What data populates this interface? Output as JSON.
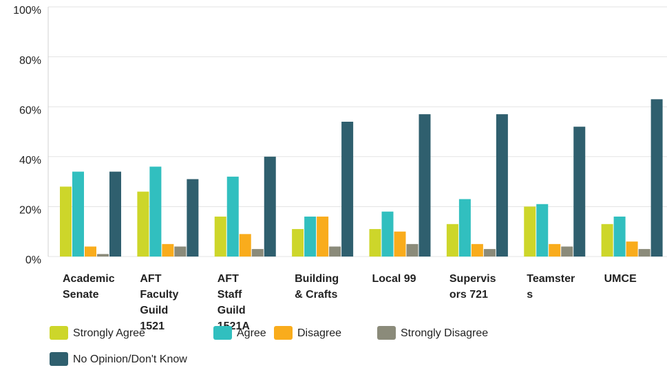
{
  "chart_data": {
    "type": "bar",
    "categories": [
      "Academic Senate",
      "AFT Faculty Guild 1521",
      "AFT Staff Guild 1521A",
      "Building & Crafts",
      "Local 99",
      "Supervisors 721",
      "Teamsters",
      "UMCE"
    ],
    "series": [
      {
        "name": "Strongly Agree",
        "color": "#cdd62a",
        "values": [
          28,
          26,
          16,
          11,
          11,
          13,
          20,
          13
        ]
      },
      {
        "name": "Agree",
        "color": "#31bfbf",
        "values": [
          34,
          36,
          32,
          16,
          18,
          23,
          21,
          16
        ]
      },
      {
        "name": "Disagree",
        "color": "#f9ac1c",
        "values": [
          4,
          5,
          9,
          16,
          10,
          5,
          5,
          6
        ]
      },
      {
        "name": "Strongly Disagree",
        "color": "#8b8b7a",
        "values": [
          1,
          4,
          3,
          4,
          5,
          3,
          4,
          3
        ]
      },
      {
        "name": "No Opinion/Don't Know",
        "color": "#2f5f6e",
        "values": [
          34,
          31,
          40,
          54,
          57,
          57,
          52,
          63
        ]
      }
    ],
    "ylim": [
      0,
      100
    ],
    "yticks": [
      {
        "value": 0,
        "label": "0%"
      },
      {
        "value": 20,
        "label": "20%"
      },
      {
        "value": 40,
        "label": "40%"
      },
      {
        "value": 60,
        "label": "60%"
      },
      {
        "value": 80,
        "label": "80%"
      },
      {
        "value": 100,
        "label": "100%"
      }
    ],
    "grid": true,
    "legend": "bottom"
  }
}
